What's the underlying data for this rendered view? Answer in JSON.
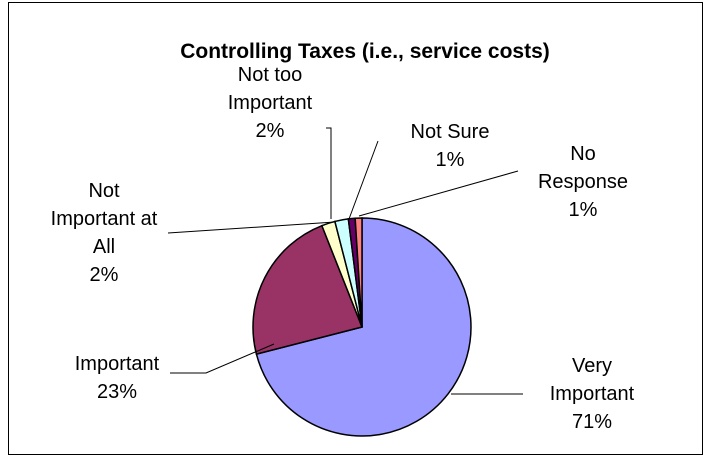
{
  "chart_data": {
    "type": "pie",
    "title": "Controlling Taxes (i.e., service costs)",
    "slices": [
      {
        "label": "Very Important",
        "lines": [
          "Very",
          "Important"
        ],
        "value": 71,
        "value_text": "71%",
        "color": "#9999FF"
      },
      {
        "label": "Important",
        "lines": [
          "Important"
        ],
        "value": 23,
        "value_text": "23%",
        "color": "#993366"
      },
      {
        "label": "Not Important at All",
        "lines": [
          "Not",
          "Important at",
          "All"
        ],
        "value": 2,
        "value_text": "2%",
        "color": "#FFFFCC"
      },
      {
        "label": "Not too Important",
        "lines": [
          "Not too",
          "Important"
        ],
        "value": 2,
        "value_text": "2%",
        "color": "#CCFFFF"
      },
      {
        "label": "Not Sure",
        "lines": [
          "Not Sure"
        ],
        "value": 1,
        "value_text": "1%",
        "color": "#660066"
      },
      {
        "label": "No Response",
        "lines": [
          "No",
          "Response"
        ],
        "value": 1,
        "value_text": "1%",
        "color": "#FF8080"
      }
    ],
    "start_angle": "12 o'clock",
    "direction": "clockwise",
    "legend": "none"
  }
}
